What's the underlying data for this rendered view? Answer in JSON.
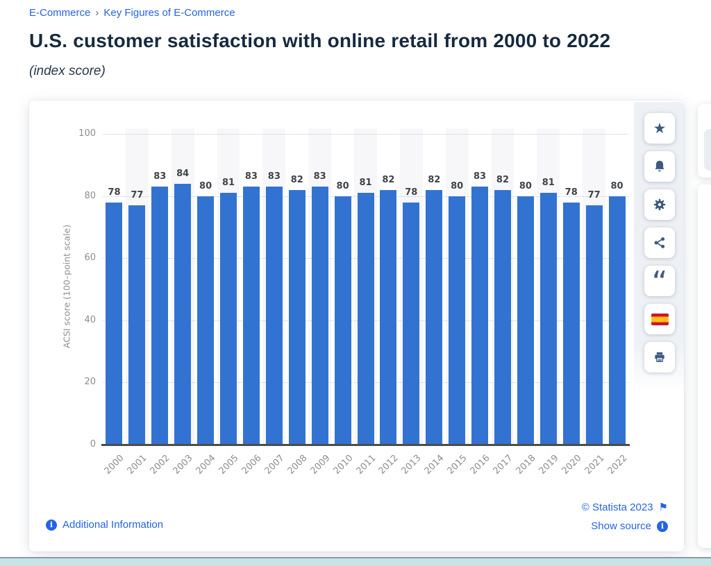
{
  "breadcrumb": {
    "items": [
      "E-Commerce",
      "Key Figures of E-Commerce"
    ],
    "separator": "›"
  },
  "header": {
    "title": "U.S. customer satisfaction with online retail from 2000 to 2022",
    "subtitle": "(index score)"
  },
  "chart_data": {
    "type": "bar",
    "title": "U.S. customer satisfaction with online retail from 2000 to 2022",
    "categories": [
      "2000",
      "2001",
      "2002",
      "2003",
      "2004",
      "2005",
      "2006",
      "2007",
      "2008",
      "2009",
      "2010",
      "2011",
      "2012",
      "2013",
      "2014",
      "2015",
      "2016",
      "2017",
      "2018",
      "2019",
      "2020",
      "2021",
      "2022"
    ],
    "values": [
      78,
      77,
      83,
      84,
      80,
      81,
      83,
      83,
      82,
      83,
      80,
      81,
      82,
      78,
      82,
      80,
      83,
      82,
      80,
      81,
      78,
      77,
      80
    ],
    "xlabel": "",
    "ylabel": "ACSI score (100–point scale)",
    "ylim": [
      0,
      100
    ],
    "yticks": [
      0,
      20,
      40,
      60,
      80,
      100
    ],
    "grid": "horizontal-dotted",
    "legend": "none",
    "data_labels": true,
    "bar_color": "#3273d2",
    "band_color": "#f7f7f9",
    "alternating_bands": "odd columns shaded"
  },
  "toolbar": {
    "icons": [
      {
        "name": "favorite-star"
      },
      {
        "name": "alerts-bell"
      },
      {
        "name": "settings-gear"
      },
      {
        "name": "share"
      },
      {
        "name": "cite-quote"
      },
      {
        "name": "language-spanish-flag"
      },
      {
        "name": "print"
      }
    ]
  },
  "footer": {
    "additional_information": "Additional Information",
    "copyright": "© Statista 2023",
    "show_source": "Show source"
  },
  "colors": {
    "accent_blue": "#2463e6",
    "title_navy": "#16293f",
    "bar_blue": "#3273d2",
    "icon_navy": "#3d5a7e",
    "teal_bottom_bar": "#c6e3e6"
  }
}
